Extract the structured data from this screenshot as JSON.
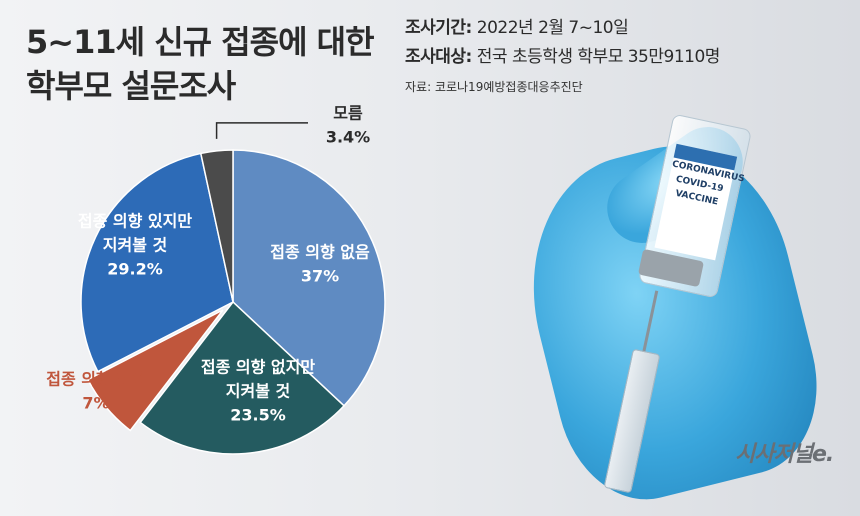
{
  "title_line1": "5~11세 신규 접종에 대한",
  "title_line2": "학부모 설문조사",
  "meta": {
    "period_label": "조사기간:",
    "period_value": "2022년 2월 7~10일",
    "target_label": "조사대상:",
    "target_value": "전국 초등학생 학부모 35만9110명",
    "source": "자료: 코로나19예방접종대응추진단"
  },
  "vial_text": "CORONAVIRUS COVID-19 VACCINE",
  "logo": "시사저널e.",
  "chart_data": {
    "type": "pie",
    "title": "5~11세 신규 접종에 대한 학부모 설문조사",
    "start": "12 o'clock",
    "direction": "clockwise",
    "slices": [
      {
        "label": "접종 의향 없음",
        "value": 37,
        "value_label": "37%",
        "color": "#5f8bc2",
        "label_color": "#ffffff"
      },
      {
        "label": "접종 의향 없지만 지켜볼 것",
        "value": 23.5,
        "value_label": "23.5%",
        "color": "#245b60",
        "label_color": "#ffffff"
      },
      {
        "label": "접종 의향 있음",
        "value": 7,
        "value_label": "7%",
        "color": "#c0563c",
        "label_color": "#c0563c"
      },
      {
        "label": "접종 의향 있지만 지켜볼 것",
        "value": 29.2,
        "value_label": "29.2%",
        "color": "#2d6bb7",
        "label_color": "#ffffff"
      },
      {
        "label": "모름",
        "value": 3.4,
        "value_label": "3.4%",
        "color": "#4b4b4b",
        "label_color": "#2b2b2b"
      }
    ]
  }
}
